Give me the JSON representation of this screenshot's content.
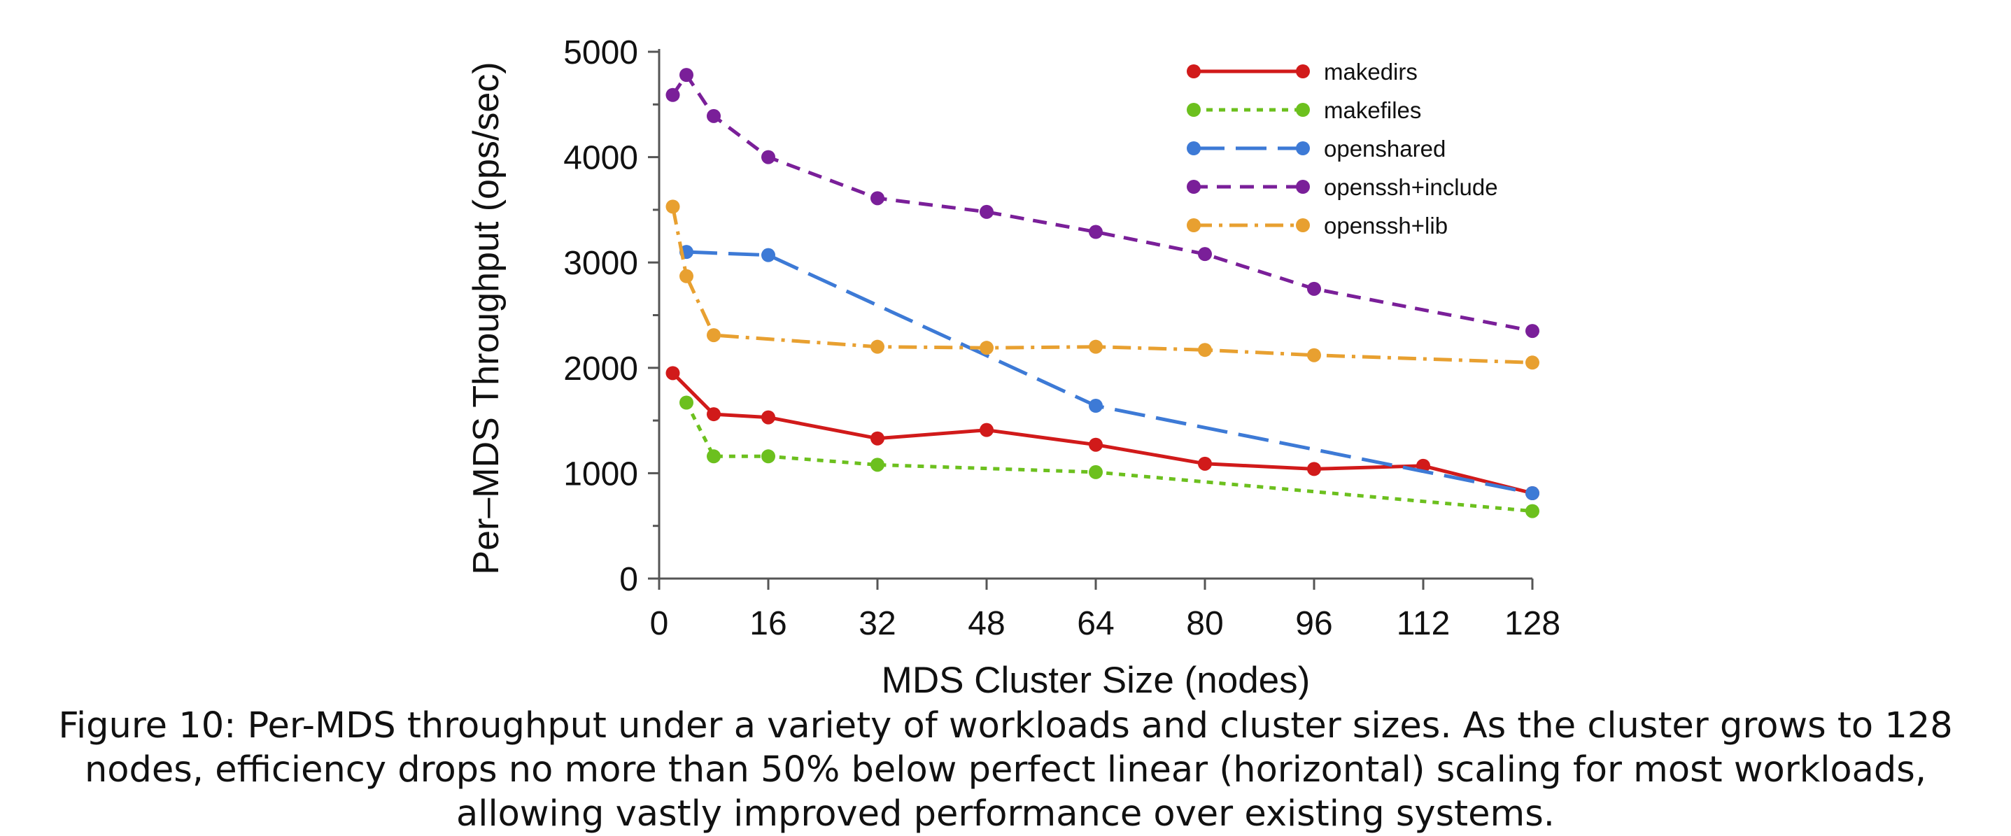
{
  "chart_data": {
    "type": "line",
    "title": "",
    "xlabel": "MDS Cluster Size (nodes)",
    "ylabel": "Per–MDS Throughput (ops/sec)",
    "xlim": [
      0,
      128
    ],
    "ylim": [
      0,
      5000
    ],
    "xticks": [
      0,
      16,
      32,
      48,
      64,
      80,
      96,
      112,
      128
    ],
    "yticks": [
      0,
      1000,
      2000,
      3000,
      4000,
      5000
    ],
    "grid": false,
    "legend_position": "top-right",
    "series": [
      {
        "name": "makedirs",
        "color": "#d11a1a",
        "dash": "solid",
        "x": [
          2,
          8,
          16,
          32,
          48,
          64,
          80,
          96,
          112,
          128
        ],
        "y": [
          1950,
          1560,
          1530,
          1330,
          1410,
          1270,
          1090,
          1040,
          1070,
          810
        ]
      },
      {
        "name": "makefiles",
        "color": "#6cc01e",
        "dash": "dotted",
        "x": [
          4,
          8,
          16,
          32,
          64,
          128
        ],
        "y": [
          1670,
          1160,
          1160,
          1080,
          1010,
          640
        ]
      },
      {
        "name": "openshared",
        "color": "#3d7ad6",
        "dash": "longdash",
        "x": [
          4,
          16,
          64,
          128
        ],
        "y": [
          3100,
          3070,
          1640,
          810
        ]
      },
      {
        "name": "openssh+include",
        "color": "#7a1f99",
        "dash": "dash",
        "x": [
          2,
          4,
          8,
          16,
          32,
          48,
          64,
          80,
          96,
          128
        ],
        "y": [
          4590,
          4780,
          4390,
          4000,
          3610,
          3480,
          3290,
          3080,
          2750,
          2350
        ]
      },
      {
        "name": "openssh+lib",
        "color": "#e8a030",
        "dash": "dashdot",
        "x": [
          2,
          4,
          8,
          32,
          48,
          64,
          80,
          96,
          128
        ],
        "y": [
          3530,
          2870,
          2310,
          2200,
          2190,
          2200,
          2170,
          2120,
          2050
        ]
      }
    ]
  },
  "caption": "Figure 10: Per-MDS throughput under a variety of workloads and cluster sizes. As the cluster grows to 128 nodes, efficiency drops no more than 50% below perfect linear (horizontal) scaling for most workloads, allowing vastly improved performance over existing systems."
}
